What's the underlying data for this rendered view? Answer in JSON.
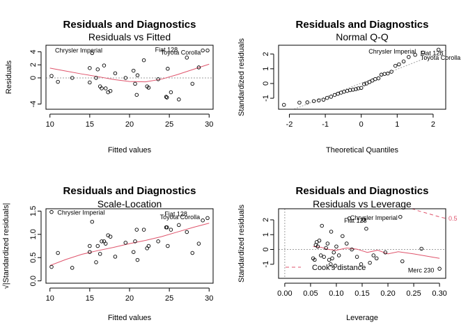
{
  "colors": {
    "smooth": "#df536b",
    "reference": "#9e9e9e",
    "points": "#000000"
  },
  "chart_data": [
    {
      "type": "scatter",
      "title": "Residuals and Diagnostics",
      "subtitle": "Residuals vs Fitted",
      "xlabel": "Fitted values",
      "ylabel": "Residuals",
      "xlim": [
        9.5,
        30.5
      ],
      "ylim": [
        -4.8,
        5.0
      ],
      "xticks": [
        10,
        15,
        20,
        25,
        30
      ],
      "yticks": [
        -4,
        0,
        2,
        4
      ],
      "hline": 0,
      "points": [
        [
          10.2,
          0.3
        ],
        [
          11,
          -0.6
        ],
        [
          12.8,
          0
        ],
        [
          15,
          1.5
        ],
        [
          15,
          -0.7
        ],
        [
          15.3,
          3.8
        ],
        [
          15.8,
          0
        ],
        [
          16,
          1.3
        ],
        [
          16.3,
          -1.3
        ],
        [
          16.5,
          -1.6
        ],
        [
          16.8,
          1.9
        ],
        [
          17,
          -1.6
        ],
        [
          17.3,
          -2.2
        ],
        [
          17.6,
          -2
        ],
        [
          18.2,
          0.7
        ],
        [
          19.5,
          0
        ],
        [
          20.5,
          1.1
        ],
        [
          20.7,
          -0.9
        ],
        [
          20.9,
          -2.6
        ],
        [
          21,
          0.4
        ],
        [
          21.8,
          2.7
        ],
        [
          22.2,
          -1.3
        ],
        [
          22.4,
          -1.5
        ],
        [
          23.6,
          -0.2
        ],
        [
          24.6,
          -2.9
        ],
        [
          24.7,
          -3
        ],
        [
          24.8,
          1.4
        ],
        [
          25.2,
          -2.2
        ],
        [
          26.2,
          -3.3
        ],
        [
          27.2,
          3.1
        ],
        [
          27.9,
          -0.9
        ],
        [
          28.7,
          1.6
        ],
        [
          29.2,
          4.2
        ],
        [
          29.8,
          4.2
        ]
      ],
      "smooth": [
        [
          10,
          1.5
        ],
        [
          12,
          1.05
        ],
        [
          14,
          0.6
        ],
        [
          16,
          0.2
        ],
        [
          18,
          -0.25
        ],
        [
          20,
          -0.55
        ],
        [
          22,
          -0.6
        ],
        [
          24,
          -0.2
        ],
        [
          26,
          0.5
        ],
        [
          28,
          1.3
        ],
        [
          30,
          2.1
        ]
      ],
      "annotations": [
        {
          "label": "Chrysler Imperial",
          "x": 10.2,
          "y": 4.2,
          "anchor": "start"
        },
        {
          "label": "Fiat 128",
          "x": 26.4,
          "y": 4.3,
          "anchor": "end"
        },
        {
          "label": "Toyota Corolla",
          "x": 29.3,
          "y": 3.9,
          "anchor": "end"
        }
      ]
    },
    {
      "type": "scatter",
      "title": "Residuals and Diagnostics",
      "subtitle": "Normal Q-Q",
      "xlabel": "Theoretical Quantiles",
      "ylabel": "Standardized residuals",
      "xlim": [
        -2.3,
        2.35
      ],
      "ylim": [
        -1.75,
        2.6
      ],
      "xticks": [
        -2,
        -1,
        0,
        1,
        2
      ],
      "yticks": [
        -1,
        0,
        1,
        2
      ],
      "reference_line": [
        [
          -2.3,
          -2.15
        ],
        [
          2.35,
          2.25
        ]
      ],
      "points": [
        [
          -2.15,
          -1.45
        ],
        [
          -1.72,
          -1.3
        ],
        [
          -1.5,
          -1.28
        ],
        [
          -1.32,
          -1.2
        ],
        [
          -1.18,
          -1.15
        ],
        [
          -1.05,
          -1.1
        ],
        [
          -0.95,
          -0.98
        ],
        [
          -0.84,
          -0.9
        ],
        [
          -0.74,
          -0.78
        ],
        [
          -0.65,
          -0.7
        ],
        [
          -0.56,
          -0.62
        ],
        [
          -0.48,
          -0.56
        ],
        [
          -0.39,
          -0.5
        ],
        [
          -0.31,
          -0.45
        ],
        [
          -0.23,
          -0.42
        ],
        [
          -0.15,
          -0.38
        ],
        [
          -0.08,
          -0.33
        ],
        [
          0,
          -0.3
        ],
        [
          0.08,
          -0.05
        ],
        [
          0.15,
          0
        ],
        [
          0.23,
          0.1
        ],
        [
          0.31,
          0.2
        ],
        [
          0.39,
          0.3
        ],
        [
          0.48,
          0.35
        ],
        [
          0.56,
          0.6
        ],
        [
          0.65,
          0.65
        ],
        [
          0.74,
          0.68
        ],
        [
          0.84,
          0.8
        ],
        [
          0.95,
          1.2
        ],
        [
          1.05,
          1.3
        ],
        [
          1.18,
          1.5
        ],
        [
          1.32,
          1.8
        ],
        [
          1.5,
          1.95
        ],
        [
          1.72,
          2.1
        ],
        [
          2.15,
          2.3
        ]
      ],
      "annotations": [
        {
          "label": "Chrysler Imperial",
          "x": 1.6,
          "y": 2.18,
          "anchor": "end"
        },
        {
          "label": "Fiat 128",
          "x": 1.55,
          "y": 2.05,
          "anchor": "start"
        },
        {
          "label": "Toyota Corolla",
          "x": 1.55,
          "y": 1.75,
          "anchor": "start"
        }
      ]
    },
    {
      "type": "scatter",
      "title": "Residuals and Diagnostics",
      "subtitle": "Scale-Location",
      "xlabel": "Fitted values",
      "ylabel": "√|Standardized residuals|",
      "xlim": [
        9.5,
        30.5
      ],
      "ylim": [
        -0.05,
        1.55
      ],
      "xticks": [
        10,
        15,
        20,
        25,
        30
      ],
      "yticks": [
        0.0,
        0.5,
        1.0,
        1.5
      ],
      "points": [
        [
          10.2,
          0.3
        ],
        [
          10.2,
          1.48
        ],
        [
          11,
          0.6
        ],
        [
          12.8,
          0.28
        ],
        [
          15,
          0.62
        ],
        [
          15,
          0.75
        ],
        [
          15.3,
          1.27
        ],
        [
          15.8,
          0.4
        ],
        [
          16,
          0.75
        ],
        [
          16.3,
          0.58
        ],
        [
          16.5,
          0.85
        ],
        [
          16.8,
          0.85
        ],
        [
          17,
          0.8
        ],
        [
          17.3,
          0.98
        ],
        [
          17.6,
          0.95
        ],
        [
          18.2,
          0.52
        ],
        [
          19.5,
          0.82
        ],
        [
          20.5,
          0.62
        ],
        [
          20.7,
          0.85
        ],
        [
          20.9,
          1.1
        ],
        [
          21,
          0.45
        ],
        [
          21.8,
          1.1
        ],
        [
          22.2,
          0.7
        ],
        [
          22.4,
          0.75
        ],
        [
          23.6,
          0.85
        ],
        [
          24.6,
          1.15
        ],
        [
          24.7,
          1.15
        ],
        [
          24.8,
          0.75
        ],
        [
          25.2,
          1.1
        ],
        [
          26.2,
          1.2
        ],
        [
          27.2,
          1.05
        ],
        [
          27.9,
          0.6
        ],
        [
          28.7,
          0.8
        ],
        [
          29.2,
          1.3
        ],
        [
          29.8,
          1.35
        ]
      ],
      "smooth": [
        [
          10,
          0.33
        ],
        [
          12,
          0.46
        ],
        [
          14,
          0.57
        ],
        [
          16,
          0.65
        ],
        [
          18,
          0.72
        ],
        [
          20,
          0.8
        ],
        [
          22,
          0.87
        ],
        [
          24,
          0.95
        ],
        [
          26,
          1.05
        ],
        [
          28,
          1.15
        ],
        [
          30,
          1.24
        ]
      ],
      "annotations": [
        {
          "label": "Chrysler Imperial",
          "x": 10.5,
          "y": 1.47,
          "anchor": "start"
        },
        {
          "label": "Fiat 128",
          "x": 27.6,
          "y": 1.44,
          "anchor": "end"
        },
        {
          "label": "Toyota Corolla",
          "x": 29.2,
          "y": 1.37,
          "anchor": "end"
        }
      ]
    },
    {
      "type": "scatter",
      "title": "Residuals and Diagnostics",
      "subtitle": "Residuals vs Leverage",
      "xlabel": "Leverage",
      "ylabel": "Standardized residuals",
      "xlim": [
        -0.012,
        0.312
      ],
      "ylim": [
        -1.95,
        2.75
      ],
      "xticks": [
        0.0,
        0.05,
        0.1,
        0.15,
        0.2,
        0.25,
        0.3
      ],
      "yticks": [
        -1,
        0,
        1,
        2
      ],
      "hline": 0,
      "vline": 0,
      "points": [
        [
          0.055,
          -0.6
        ],
        [
          0.058,
          -0.7
        ],
        [
          0.06,
          0.3
        ],
        [
          0.062,
          0.5
        ],
        [
          0.064,
          0.2
        ],
        [
          0.067,
          0.6
        ],
        [
          0.07,
          -0.4
        ],
        [
          0.072,
          1.6
        ],
        [
          0.076,
          -0.5
        ],
        [
          0.08,
          0.1
        ],
        [
          0.083,
          0.4
        ],
        [
          0.086,
          -0.7
        ],
        [
          0.089,
          -1.0
        ],
        [
          0.09,
          1.2
        ],
        [
          0.092,
          -0.6
        ],
        [
          0.095,
          -0.2
        ],
        [
          0.098,
          -1.1
        ],
        [
          0.1,
          0.2
        ],
        [
          0.105,
          -0.4
        ],
        [
          0.112,
          0.9
        ],
        [
          0.12,
          0.4
        ],
        [
          0.125,
          2.1
        ],
        [
          0.13,
          0.0
        ],
        [
          0.14,
          -0.5
        ],
        [
          0.148,
          -1.0
        ],
        [
          0.153,
          2.0
        ],
        [
          0.158,
          1.4
        ],
        [
          0.165,
          -0.9
        ],
        [
          0.172,
          -0.4
        ],
        [
          0.178,
          -0.6
        ],
        [
          0.195,
          -0.2
        ],
        [
          0.224,
          2.2
        ],
        [
          0.228,
          -0.8
        ],
        [
          0.265,
          0.05
        ],
        [
          0.3,
          -1.3
        ]
      ],
      "smooth": [
        [
          0.055,
          0.2
        ],
        [
          0.07,
          0.15
        ],
        [
          0.085,
          0.0
        ],
        [
          0.1,
          -0.05
        ],
        [
          0.12,
          0.1
        ],
        [
          0.14,
          0.02
        ],
        [
          0.16,
          -0.2
        ],
        [
          0.18,
          -0.05
        ],
        [
          0.2,
          -0.3
        ],
        [
          0.22,
          -0.15
        ],
        [
          0.25,
          -0.3
        ],
        [
          0.3,
          -0.6
        ]
      ],
      "cooks_line_upper": [
        [
          0.2,
          3.3
        ],
        [
          0.23,
          2.95
        ],
        [
          0.26,
          2.6
        ],
        [
          0.3,
          2.2
        ],
        [
          0.312,
          2.1
        ]
      ],
      "contour_label": "0.5",
      "legend": "Cook's distance",
      "legend_position": "bottom-left",
      "annotations": [
        {
          "label": "Chrysler Imperial",
          "x": 0.224,
          "y": 2.15,
          "anchor": "end"
        },
        {
          "label": "Fiat 128",
          "x": 0.137,
          "y": 1.95,
          "anchor": "middle"
        },
        {
          "label": "Merc 230",
          "x": 0.295,
          "y": -1.42,
          "anchor": "end"
        }
      ]
    }
  ]
}
